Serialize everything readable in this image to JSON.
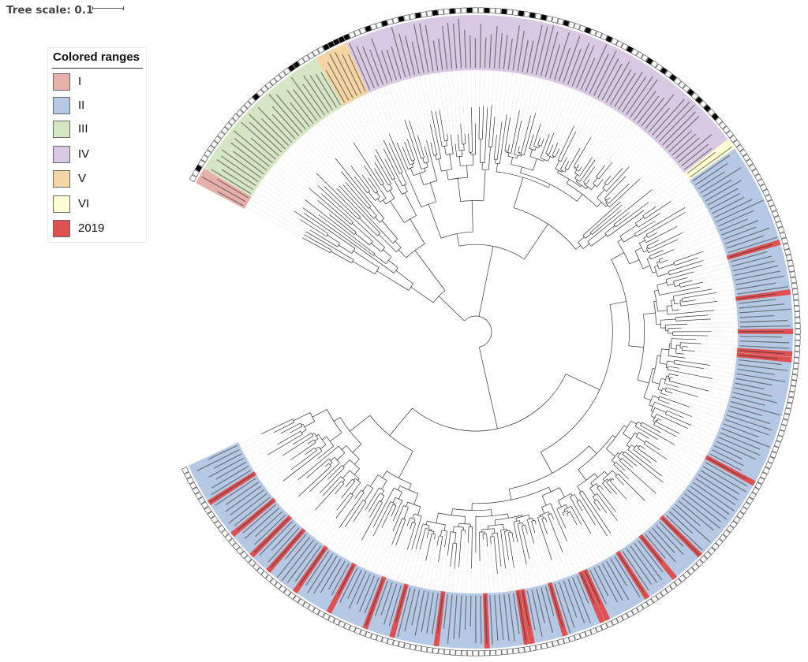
{
  "header": {
    "tree_scale_label": "Tree scale: 0.1"
  },
  "legend": {
    "title": "Colored ranges",
    "items": [
      {
        "label": "I",
        "color": "#e8b0aa"
      },
      {
        "label": "II",
        "color": "#b6c9e4"
      },
      {
        "label": "III",
        "color": "#d5e6c4"
      },
      {
        "label": "IV",
        "color": "#d9c9e2"
      },
      {
        "label": "V",
        "color": "#f4d5a4"
      },
      {
        "label": "VI",
        "color": "#ffffd6"
      },
      {
        "label": "2019",
        "color": "#e05050"
      }
    ]
  },
  "tree": {
    "layout": "circular",
    "leaf_count": 300,
    "start_angle_deg": 208,
    "end_angle_deg": 515,
    "clades": [
      {
        "name": "I",
        "color": "#e8b0aa",
        "from": 0,
        "to": 3
      },
      {
        "name": "III",
        "color": "#d5e6c4",
        "from": 3,
        "to": 31
      },
      {
        "name": "V",
        "color": "#f4d5a4",
        "from": 31,
        "to": 37
      },
      {
        "name": "IV",
        "color": "#d9c9e2",
        "from": 37,
        "to": 112
      },
      {
        "name": "VI",
        "color": "#ffffd6",
        "from": 112,
        "to": 114
      },
      {
        "name": "II",
        "color": "#b6c9e4",
        "from": 114,
        "to": 300
      }
    ],
    "highlight_2019_leaves": [
      132,
      141,
      148,
      152,
      153,
      176,
      192,
      198,
      204,
      212,
      213,
      220,
      226,
      227,
      234,
      243,
      251,
      256,
      263,
      270,
      276,
      280,
      285,
      292
    ],
    "filled_marker_leaves": [
      2,
      18,
      26,
      27,
      33,
      34,
      35,
      36,
      37,
      41,
      44,
      47,
      50,
      53,
      56,
      59,
      62,
      65,
      68,
      70,
      72,
      76,
      80,
      84,
      88,
      92,
      95,
      97,
      101,
      103,
      105,
      107
    ]
  }
}
